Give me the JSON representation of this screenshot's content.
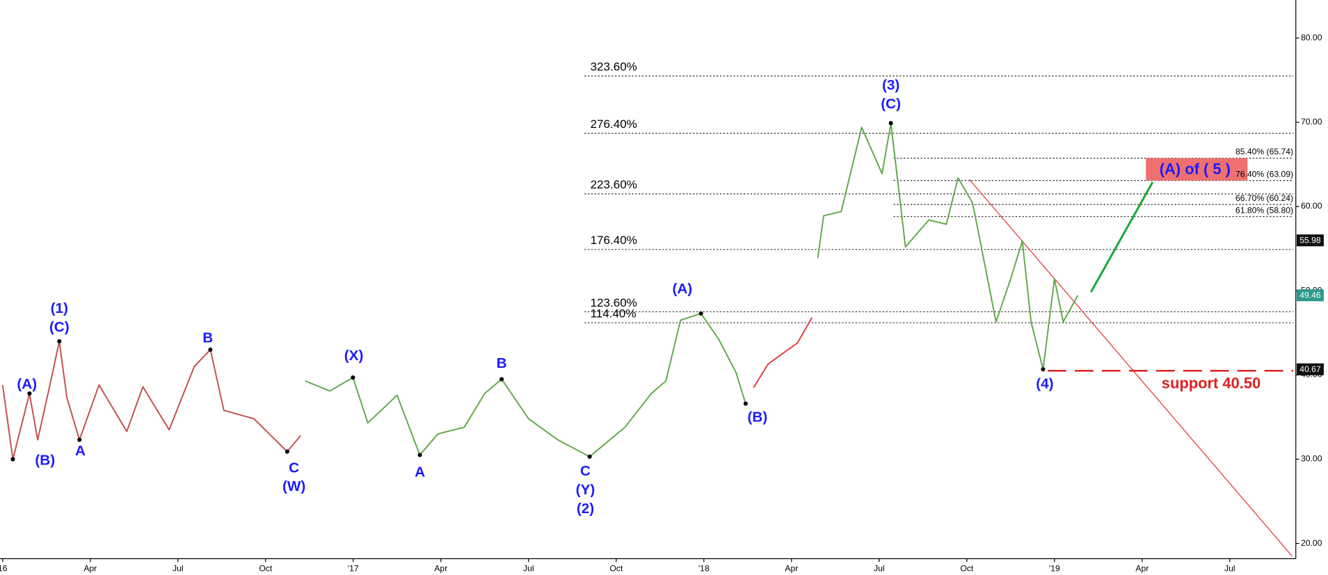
{
  "chart_data": {
    "type": "line",
    "xlim": [
      -0.09,
      44.26
    ],
    "xticks": [
      {
        "value": 0,
        "label": "16"
      },
      {
        "value": 3,
        "label": "Apr"
      },
      {
        "value": 6,
        "label": "Jul"
      },
      {
        "value": 9,
        "label": "Oct"
      },
      {
        "value": 12,
        "label": "'17"
      },
      {
        "value": 15,
        "label": "Apr"
      },
      {
        "value": 18,
        "label": "Jul"
      },
      {
        "value": 21,
        "label": "Oct"
      },
      {
        "value": 24,
        "label": "'18"
      },
      {
        "value": 27,
        "label": "Apr"
      },
      {
        "value": 30,
        "label": "Jul"
      },
      {
        "value": 33,
        "label": "Oct"
      },
      {
        "value": 36,
        "label": "'19"
      },
      {
        "value": 39,
        "label": "Apr"
      },
      {
        "value": 42,
        "label": "Jul"
      }
    ],
    "ylim": [
      18.19,
      84.52
    ],
    "yticks": [
      {
        "value": 20,
        "label": "20.00"
      },
      {
        "value": 30,
        "label": "30.00"
      },
      {
        "value": 40,
        "label": "40.00"
      },
      {
        "value": 50,
        "label": "50.00"
      },
      {
        "value": 60,
        "label": "60.00"
      },
      {
        "value": 70,
        "label": "70.00"
      },
      {
        "value": 80,
        "label": "80.00"
      }
    ],
    "series": [
      {
        "color": "#c0504d",
        "x": [
          0,
          0.35,
          0.92,
          1.2,
          1.65,
          1.94,
          2.2,
          2.63,
          3.3,
          4.25,
          4.8,
          5.7,
          6.56,
          7.11,
          7.57,
          8.6,
          9.74,
          10.2
        ],
        "values": [
          38.8,
          30.0,
          37.8,
          32.3,
          39.3,
          44.0,
          37.3,
          32.3,
          38.8,
          33.3,
          38.6,
          33.5,
          41.0,
          43.0,
          35.8,
          34.8,
          30.9,
          32.8
        ]
      },
      {
        "color": "#5fa84a",
        "x": [
          10.35,
          11.2,
          11.99,
          12.5,
          13.5,
          14.28,
          14.9,
          15.8,
          16.5,
          17.08,
          18.0,
          19.0,
          20.09,
          21.3,
          22.2,
          22.7,
          23.2,
          23.9,
          24.5,
          25.1,
          25.43
        ],
        "values": [
          39.3,
          38.1,
          39.7,
          34.3,
          37.6,
          30.5,
          33.0,
          33.8,
          37.8,
          39.5,
          34.8,
          32.3,
          30.3,
          33.8,
          37.8,
          39.3,
          46.5,
          47.3,
          44.3,
          40.3,
          36.6
        ]
      },
      {
        "color": "#e03c3c",
        "x": [
          25.7,
          26.2,
          27.2,
          27.7
        ],
        "values": [
          38.5,
          41.3,
          43.8,
          46.8
        ]
      },
      {
        "color": "#5fa84a",
        "x": [
          27.9,
          28.1,
          28.7,
          29.4,
          30.1,
          30.4,
          30.9,
          31.7,
          32.3,
          32.7,
          33.2,
          33.6,
          34.0,
          34.5,
          34.9,
          35.2,
          35.61,
          36.0,
          36.3,
          36.8
        ],
        "values": [
          53.9,
          58.9,
          59.4,
          69.4,
          63.9,
          69.9,
          55.2,
          58.4,
          57.9,
          63.4,
          60.4,
          53.4,
          46.3,
          51.4,
          55.9,
          46.3,
          40.67,
          51.4,
          46.3,
          49.46
        ]
      }
    ],
    "fib_levels": [
      {
        "name": "323.60%",
        "value": 75.5
      },
      {
        "name": "276.40%",
        "value": 68.7
      },
      {
        "name": "223.60%",
        "value": 61.5
      },
      {
        "name": "176.40%",
        "value": 54.9
      },
      {
        "name": "123.60%",
        "value": 47.5
      },
      {
        "name": "114.40%",
        "value": 46.2
      }
    ],
    "target_fibs": [
      {
        "label": "85.40% (65.74)",
        "value": 65.74
      },
      {
        "label": "76.40% (63.09)",
        "value": 63.09
      },
      {
        "label": "66.70% (60.24)",
        "value": 60.24
      },
      {
        "label": "61.80% (58.80)",
        "value": 58.8
      }
    ],
    "target": {
      "label": "(A) of ( 5 )",
      "high": 65.74,
      "low": 63.09,
      "color": "#f07070"
    },
    "annotations": [
      {
        "lines": [
          "(1)",
          "(C)"
        ],
        "x": 1.94,
        "y": 44.0
      },
      {
        "lines": [
          "(A)"
        ],
        "x": 0.92,
        "y": 37.8
      },
      {
        "lines": [
          "(B)"
        ],
        "x": 0.35,
        "y": 30.0
      },
      {
        "lines": [
          "A"
        ],
        "x": 2.63,
        "y": 32.3
      },
      {
        "lines": [
          "B"
        ],
        "x": 7.11,
        "y": 43.0
      },
      {
        "lines": [
          "C",
          "(W)"
        ],
        "x": 9.74,
        "y": 30.9
      },
      {
        "lines": [
          "(X)"
        ],
        "x": 11.99,
        "y": 39.7
      },
      {
        "lines": [
          "A"
        ],
        "x": 14.28,
        "y": 30.5
      },
      {
        "lines": [
          "B"
        ],
        "x": 17.08,
        "y": 39.5
      },
      {
        "lines": [
          "C",
          "(Y)",
          "(2)"
        ],
        "x": 20.09,
        "y": 30.3
      },
      {
        "lines": [
          "(A)"
        ],
        "x": 23.9,
        "y": 47.3
      },
      {
        "lines": [
          "(B)"
        ],
        "x": 25.43,
        "y": 36.6
      },
      {
        "lines": [
          "(3)",
          "(C)"
        ],
        "x": 30.4,
        "y": 69.9
      },
      {
        "lines": [
          "(4)"
        ],
        "x": 35.61,
        "y": 40.67
      }
    ],
    "trendline": {
      "color": "#e03030",
      "x": [
        33.09,
        44.13
      ],
      "values": [
        63.2,
        18.5
      ]
    },
    "arrow": {
      "color": "#1aaa3a",
      "x": [
        37.25,
        39.36
      ],
      "values": [
        49.85,
        62.9
      ]
    },
    "support": {
      "label": "support 40.50",
      "value": 40.5,
      "color": "#e02020"
    },
    "price_tags": [
      {
        "value": 55.98,
        "color": "#111111"
      },
      {
        "value": 49.46,
        "color": "#2a9a8c"
      },
      {
        "value": 40.67,
        "color": "#111111"
      }
    ]
  }
}
